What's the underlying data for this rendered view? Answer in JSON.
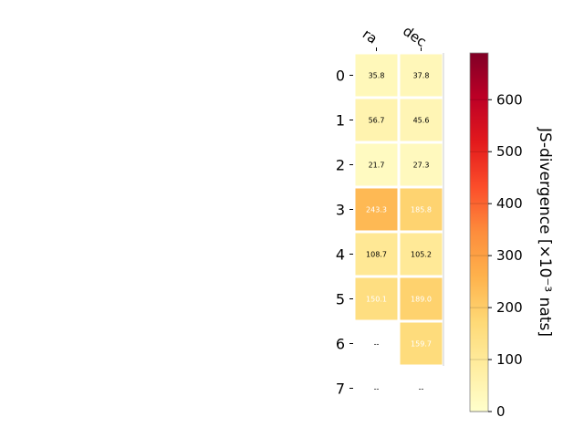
{
  "chart_data": {
    "type": "heatmap",
    "columns": [
      "ra",
      "dec"
    ],
    "rows": [
      "0",
      "1",
      "2",
      "3",
      "4",
      "5",
      "6",
      "7"
    ],
    "values": [
      [
        35.8,
        37.8
      ],
      [
        56.7,
        45.6
      ],
      [
        21.7,
        27.3
      ],
      [
        243.3,
        185.8
      ],
      [
        108.7,
        105.2
      ],
      [
        150.1,
        189.0
      ],
      [
        null,
        159.7
      ],
      [
        null,
        null
      ]
    ],
    "cell_labels": [
      [
        "35.8",
        "37.8"
      ],
      [
        "56.7",
        "45.6"
      ],
      [
        "21.7",
        "27.3"
      ],
      [
        "243.3",
        "185.8"
      ],
      [
        "108.7",
        "105.2"
      ],
      [
        "150.1",
        "189.0"
      ],
      [
        "--",
        "159.7"
      ],
      [
        "--",
        "--"
      ]
    ],
    "colorbar": {
      "label": "JS-divergence [×10⁻³ nats]",
      "ticks": [
        0,
        100,
        200,
        300,
        400,
        500,
        600
      ],
      "range": [
        0,
        690
      ],
      "colormap": "YlOrRd"
    },
    "grid": false
  }
}
